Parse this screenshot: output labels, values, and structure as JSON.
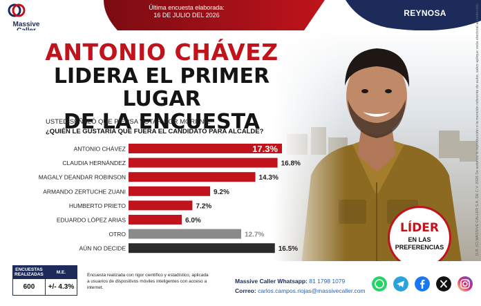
{
  "header": {
    "logo_name": "Massive\nCaller",
    "survey_label": "Última encuesta elaborada:",
    "survey_date": "16 DE JULIO DEL 2026",
    "city": "REYNOSA",
    "brand_red": "#c0131b",
    "brand_navy": "#1c2b5a"
  },
  "headline": {
    "line1": "ANTONIO CHÁVEZ",
    "line2": "LIDERA EL PRIMER LUGAR",
    "line3": "DE LA ENCUESTA"
  },
  "question": {
    "intro": "USTED SEÑALÓ QUE PIENSA VOTAR POR MORENA.",
    "text": "¿QUIÉN LE GUSTARÍA QUE FUERA EL CANDIDATO PARA ALCALDE?"
  },
  "chart_data": {
    "type": "bar",
    "orientation": "horizontal",
    "categories": [
      "ANTONIO CHÁVEZ",
      "CLAUDIA HERNÁNDEZ",
      "MAGALY DEANDAR ROBINSON",
      "ARMANDO ZERTUCHE ZUANI",
      "HUMBERTO PRIETO",
      "EDUARDO LÓPEZ ARIAS",
      "OTRO",
      "AÚN NO DECIDE"
    ],
    "values": [
      17.3,
      16.8,
      14.3,
      9.2,
      7.2,
      6.0,
      12.7,
      16.5
    ],
    "labels": [
      "17.3%",
      "16.8%",
      "14.3%",
      "9.2%",
      "7.2%",
      "6.0%",
      "12.7%",
      "16.5%"
    ],
    "colors": [
      "#c0131b",
      "#c0131b",
      "#c0131b",
      "#c0131b",
      "#c0131b",
      "#c0131b",
      "#8a8a8a",
      "#2b2b2b"
    ],
    "highlight_index": 0,
    "xlim": [
      0,
      17.3
    ]
  },
  "badge": {
    "line1": "LÍDER",
    "line2": "EN LAS",
    "line3": "PREFERENCIAS"
  },
  "disclaimer": "D.R. (C) MASSIVE CALLER S.A. DE C.V. 2026  Se autoriza la reproducción o la mención referente de autor, salvo aplique veda electoral al contenido.",
  "footer": {
    "stats_header_1": "ENCUESTAS REALIZADAS",
    "stats_header_2": "M.E.",
    "stats_value_1": "600",
    "stats_value_2": "+/- 4.3%",
    "methodology": "Encuesta realizada con rigor científico y estadístico, aplicada a usuarios de dispositivos móviles inteligentes con acceso a internet.",
    "whatsapp_label": "Massive Caller Whatsapp:",
    "whatsapp_value": "81 1798 1079",
    "email_label": "Correo:",
    "email_value": "carlos.campos.riojas@massivecaller.com",
    "socials": [
      "whatsapp-icon",
      "telegram-icon",
      "facebook-icon",
      "x-icon",
      "instagram-icon"
    ]
  }
}
